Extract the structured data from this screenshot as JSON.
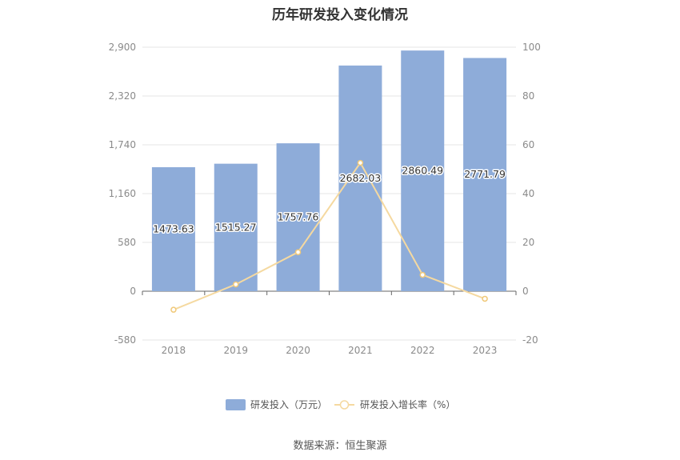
{
  "chart_data": {
    "type": "bar",
    "title": "历年研发投入变化情况",
    "categories": [
      "2018",
      "2019",
      "2020",
      "2021",
      "2022",
      "2023"
    ],
    "series": [
      {
        "name": "研发投入（万元）",
        "type": "bar",
        "axis": "left",
        "values": [
          1473.63,
          1515.27,
          1757.76,
          2682.03,
          2860.49,
          2771.79
        ],
        "labels": [
          "1473.63",
          "1515.27",
          "1757.76",
          "2682.03",
          "2860.49",
          "2771.79"
        ],
        "color": "#8eacd9"
      },
      {
        "name": "研发投入增长率（%）",
        "type": "line",
        "axis": "right",
        "values": [
          -7.6,
          2.8,
          16.0,
          52.6,
          6.7,
          -3.1
        ],
        "color": "#f5d9a0"
      }
    ],
    "y_left": {
      "min": -580,
      "max": 2900,
      "ticks": [
        "-580",
        "0",
        "580",
        "1,160",
        "1,740",
        "2,320",
        "2,900"
      ]
    },
    "y_right": {
      "min": -20,
      "max": 100,
      "ticks": [
        "-20",
        "0",
        "20",
        "40",
        "60",
        "80",
        "100"
      ]
    },
    "grid": true,
    "legend": "bottom"
  },
  "source_text": "数据来源：恒生聚源"
}
